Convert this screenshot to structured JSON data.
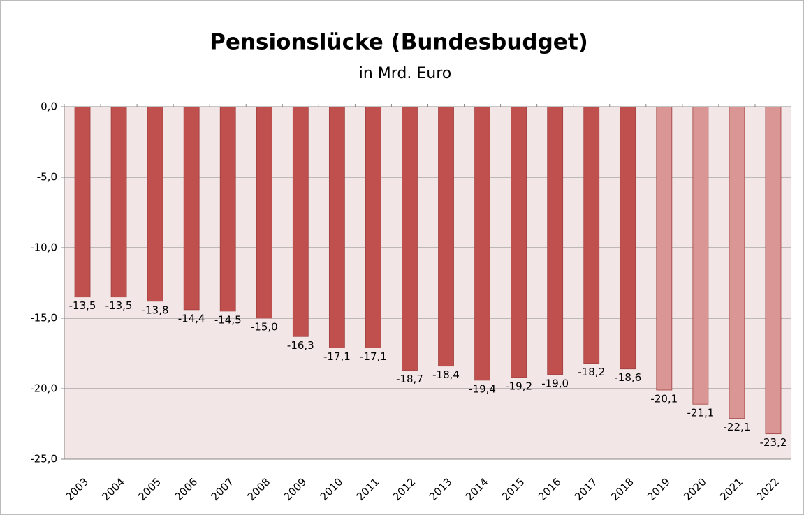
{
  "chart_data": {
    "type": "bar",
    "title": "Pensionslücke (Bundesbudget)",
    "subtitle": "in Mrd. Euro",
    "categories": [
      "2003",
      "2004",
      "2005",
      "2006",
      "2007",
      "2008",
      "2009",
      "2010",
      "2011",
      "2012",
      "2013",
      "2014",
      "2015",
      "2016",
      "2017",
      "2018",
      "2019",
      "2020",
      "2021",
      "2022"
    ],
    "values": [
      -13.5,
      -13.5,
      -13.8,
      -14.4,
      -14.5,
      -15.0,
      -16.3,
      -17.1,
      -17.1,
      -18.7,
      -18.4,
      -19.4,
      -19.2,
      -19.0,
      -18.2,
      -18.6,
      -20.1,
      -21.1,
      -22.1,
      -23.2
    ],
    "value_labels": [
      "-13,5",
      "-13,5",
      "-13,8",
      "-14,4",
      "-14,5",
      "-15,0",
      "-16,3",
      "-17,1",
      "-17,1",
      "-18,7",
      "-18,4",
      "-19,4",
      "-19,2",
      "-19,0",
      "-18,2",
      "-18,6",
      "-20,1",
      "-21,1",
      "-22,1",
      "-23,2"
    ],
    "colors": [
      "#c0504d",
      "#c0504d",
      "#c0504d",
      "#c0504d",
      "#c0504d",
      "#c0504d",
      "#c0504d",
      "#c0504d",
      "#c0504d",
      "#c0504d",
      "#c0504d",
      "#c0504d",
      "#c0504d",
      "#c0504d",
      "#c0504d",
      "#c0504d",
      "#d99694",
      "#d99694",
      "#d99694",
      "#d99694"
    ],
    "ylim": [
      -25,
      0
    ],
    "yticks": [
      {
        "value": 0,
        "label": "0,0"
      },
      {
        "value": -5,
        "label": "-5,0"
      },
      {
        "value": -10,
        "label": "-10,0"
      },
      {
        "value": -15,
        "label": "-15,0"
      },
      {
        "value": -20,
        "label": "-20,0"
      },
      {
        "value": -25,
        "label": "-25,0"
      }
    ],
    "grid": true
  }
}
